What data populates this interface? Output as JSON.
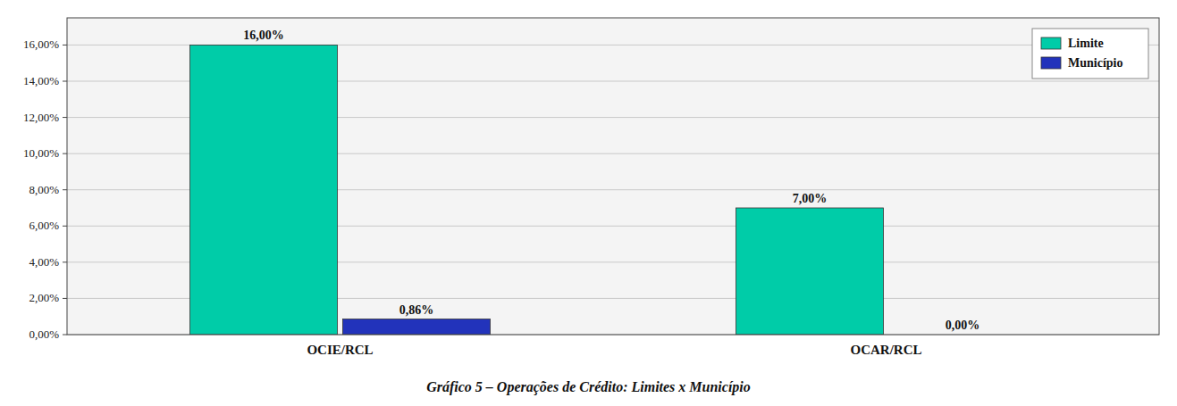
{
  "chart_data": {
    "type": "bar",
    "title": "Gráfico 5 – Operações de Crédito: Limites x Município",
    "categories": [
      "OCIE/RCL",
      "OCAR/RCL"
    ],
    "series": [
      {
        "name": "Limite",
        "color": "#00CCA8",
        "values": [
          16.0,
          7.0
        ],
        "value_labels": [
          "16,00%",
          "7,00%"
        ]
      },
      {
        "name": "Município",
        "color": "#2233BB",
        "values": [
          0.86,
          0.0
        ],
        "value_labels": [
          "0,86%",
          "0,00%"
        ]
      }
    ],
    "ylim": [
      0,
      17.5
    ],
    "yticks": [
      {
        "value": 0,
        "label": "0,00%"
      },
      {
        "value": 2,
        "label": "2,00%"
      },
      {
        "value": 4,
        "label": "4,00%"
      },
      {
        "value": 6,
        "label": "6,00%"
      },
      {
        "value": 8,
        "label": "8,00%"
      },
      {
        "value": 10,
        "label": "10,00%"
      },
      {
        "value": 12,
        "label": "12,00%"
      },
      {
        "value": 14,
        "label": "14,00%"
      },
      {
        "value": 16,
        "label": "16,00%"
      }
    ],
    "grid": true,
    "legend": "upper right",
    "data_labels": true
  }
}
